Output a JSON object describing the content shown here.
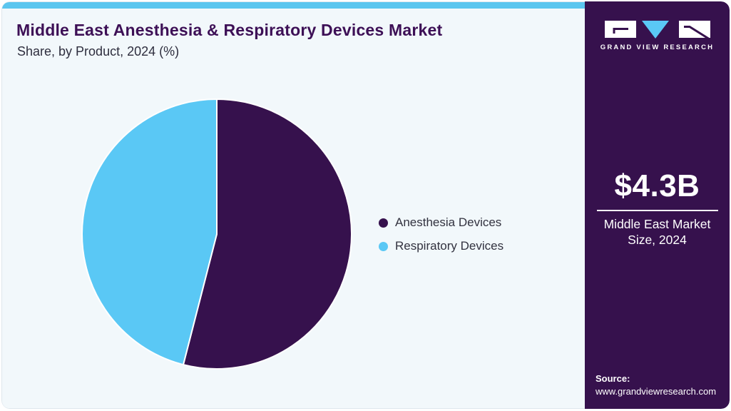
{
  "header": {
    "title": "Middle East Anesthesia & Respiratory Devices Market",
    "subtitle": "Share, by Product, 2024 (%)"
  },
  "chart_data": {
    "type": "pie",
    "title": "Middle East Anesthesia & Respiratory Devices Market Share, by Product, 2024 (%)",
    "categories": [
      "Anesthesia Devices",
      "Respiratory Devices"
    ],
    "values": [
      54,
      46
    ],
    "unit": "%",
    "colors": [
      "#36114d",
      "#5ac8f5"
    ],
    "start_angle_deg": 0,
    "direction": "clockwise",
    "legend_position": "right",
    "data_labels_shown": false
  },
  "sidebar": {
    "logo_text": "GRAND VIEW RESEARCH",
    "stat": {
      "value": "$4.3B",
      "label": "Middle East Market Size, 2024"
    },
    "source": {
      "label": "Source:",
      "url": "www.grandviewresearch.com"
    }
  },
  "theme": {
    "accent_strip_blue": "#5bc6ef",
    "brand_purple": "#36114d",
    "title_purple": "#3d1056",
    "pie_blue": "#5ac8f5",
    "panel_background": "#f2f8fb",
    "body_text": "#2e2e3e",
    "sidebar_text": "#ffffff"
  }
}
